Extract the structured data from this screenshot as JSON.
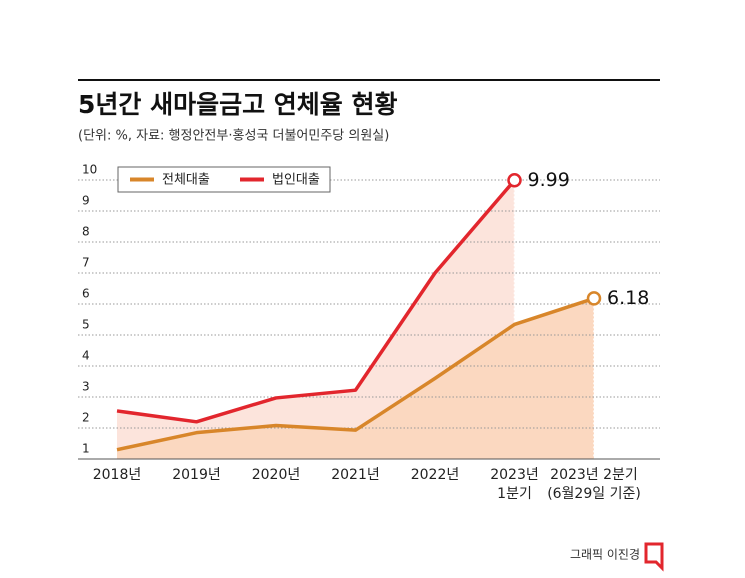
{
  "chart_data": {
    "type": "line",
    "title": "5년간 새마을금고 연체율 현황",
    "subtitle": "(단위: %, 자료: 행정안전부·홍성국 더불어민주당 의원실)",
    "credit": "그래픽 이진경",
    "categories": [
      "2018년",
      "2019년",
      "2020년",
      "2021년",
      "2022년",
      "2023년\n1분기",
      "2023년 2분기\n(6월29일 기준)"
    ],
    "series": [
      {
        "name": "전체대출",
        "color": "#d8862a",
        "area_color": "#fbd8c0",
        "values": [
          1.3,
          1.85,
          2.08,
          1.93,
          3.6,
          5.34,
          6.18
        ]
      },
      {
        "name": "법인대출",
        "color": "#e2262d",
        "area_color": "#fce4dc",
        "values": [
          2.55,
          2.2,
          2.97,
          3.22,
          7.0,
          9.99,
          null
        ]
      }
    ],
    "ylim": [
      1,
      10
    ],
    "yticks": [
      1,
      2,
      3,
      4,
      5,
      6,
      7,
      8,
      9,
      10
    ],
    "grid": true,
    "end_point_labels": true,
    "legend": "top-left"
  }
}
